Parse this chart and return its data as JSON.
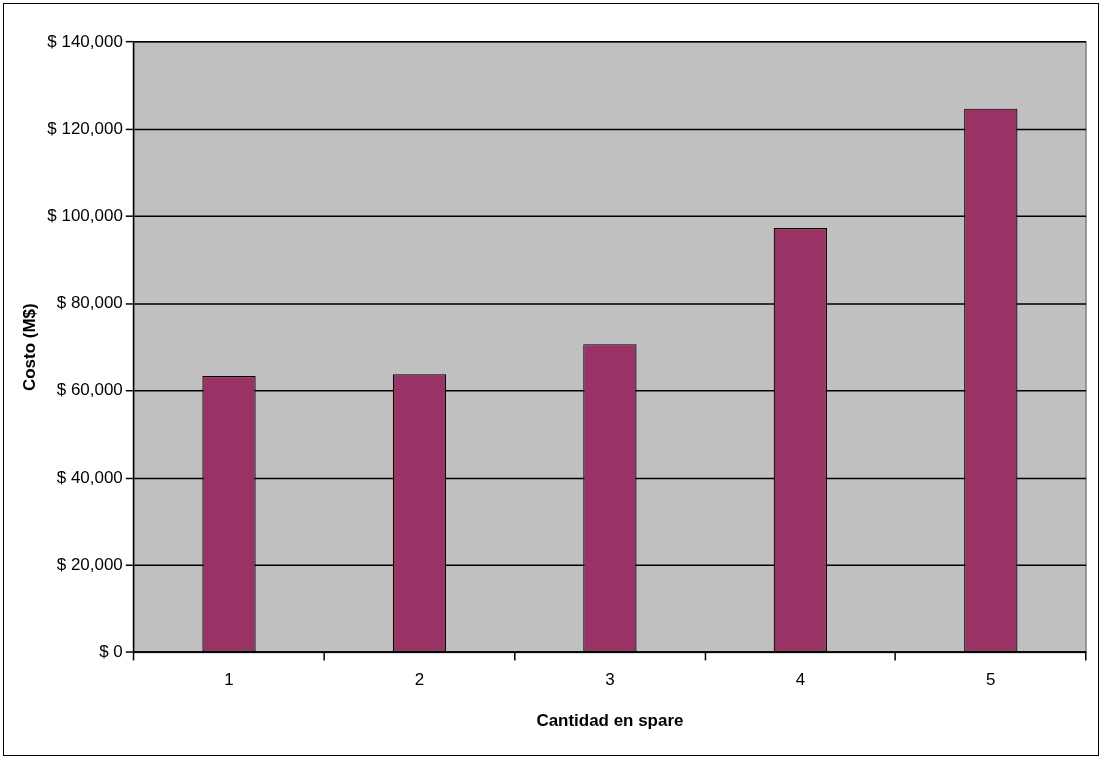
{
  "chart_data": {
    "type": "bar",
    "xlabel": "Cantidad en spare",
    "ylabel": "Costo (M$)",
    "categories": [
      "1",
      "2",
      "3",
      "4",
      "5"
    ],
    "values": [
      63400,
      63800,
      70700,
      97300,
      124700
    ],
    "color": "#993366",
    "ylim": [
      0,
      140000
    ],
    "yticks": [
      {
        "value": 0,
        "label": "$ 0"
      },
      {
        "value": 20000,
        "label": "$ 20,000"
      },
      {
        "value": 40000,
        "label": "$ 40,000"
      },
      {
        "value": 60000,
        "label": "$ 60,000"
      },
      {
        "value": 80000,
        "label": "$ 80,000"
      },
      {
        "value": 100000,
        "label": "$ 100,000"
      },
      {
        "value": 120000,
        "label": "$ 120,000"
      },
      {
        "value": 140000,
        "label": "$ 140,000"
      }
    ],
    "grid": "y",
    "legend": false
  }
}
